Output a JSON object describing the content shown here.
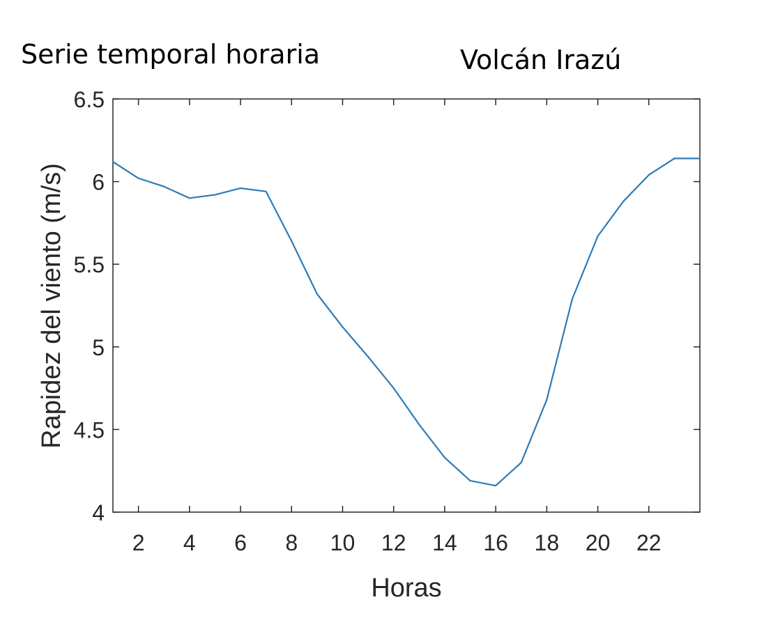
{
  "header": {
    "left_title": "Serie temporal horaria",
    "right_title": "Volcán Irazú"
  },
  "colors": {
    "line": "#2b7bb9",
    "axis": "#262626",
    "background": "#ffffff"
  },
  "chart_data": {
    "type": "line",
    "title": "",
    "xlabel": "Horas",
    "ylabel": "Rapidez del viento (m/s)",
    "xlim": [
      1,
      24
    ],
    "ylim": [
      4,
      6.5
    ],
    "xticks": [
      2,
      4,
      6,
      8,
      10,
      12,
      14,
      16,
      18,
      20,
      22
    ],
    "xtick_labels": [
      "2",
      "4",
      "6",
      "8",
      "10",
      "12",
      "14",
      "16",
      "18",
      "20",
      "22"
    ],
    "yticks": [
      4,
      4.5,
      5,
      5.5,
      6,
      6.5
    ],
    "ytick_labels": [
      "4",
      "4.5",
      "5",
      "5.5",
      "6",
      "6.5"
    ],
    "grid": false,
    "series": [
      {
        "x": [
          1,
          2,
          3,
          4,
          5,
          6,
          7,
          8,
          9,
          10,
          11,
          12,
          13,
          14,
          15,
          16,
          17,
          18,
          19,
          20,
          21,
          22,
          23,
          24
        ],
        "y": [
          6.12,
          6.02,
          5.97,
          5.9,
          5.92,
          5.96,
          5.94,
          5.64,
          5.32,
          5.12,
          4.94,
          4.75,
          4.53,
          4.33,
          4.19,
          4.16,
          4.3,
          4.68,
          5.29,
          5.67,
          5.88,
          6.04,
          6.14,
          6.14
        ]
      }
    ]
  }
}
